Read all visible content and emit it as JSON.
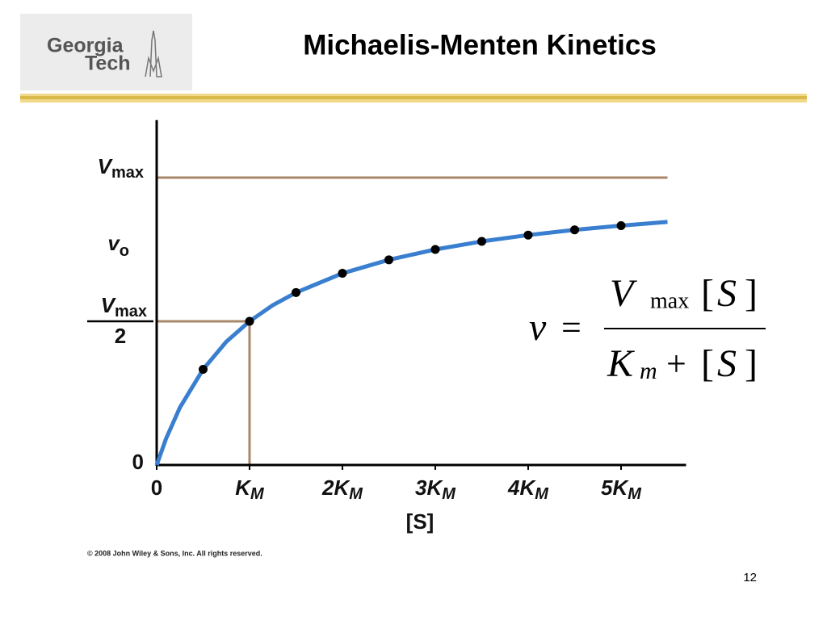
{
  "header": {
    "logo": [
      "Georgia",
      "Tech"
    ],
    "title": "Michaelis-Menten Kinetics"
  },
  "chart_data": {
    "type": "scatter",
    "xlim": [
      0,
      5.7
    ],
    "ylim": [
      0,
      1.2
    ],
    "xticks": [
      0,
      {
        "value": 1,
        "label": "K",
        "sub": "M"
      },
      {
        "value": 2,
        "label": "2K",
        "sub": "M"
      },
      {
        "value": 3,
        "label": "3K",
        "sub": "M"
      },
      {
        "value": 4,
        "label": "4K",
        "sub": "M"
      },
      {
        "value": 5,
        "label": "5K",
        "sub": "M"
      }
    ],
    "yticks": [
      0,
      {
        "value": 0.5,
        "label": "V",
        "sub": "max",
        "denominator": "2"
      },
      {
        "value": 1,
        "label": "V",
        "sub": "max"
      }
    ],
    "xlabel": "[S]",
    "ylabel": {
      "label": "v",
      "sub": "o"
    },
    "reference_color": "#a8876a",
    "series": [
      {
        "x": [
          0.5,
          1,
          1.5,
          2,
          2.5,
          3,
          3.5,
          4,
          4.5,
          5
        ],
        "values": [
          0.333,
          0.5,
          0.6,
          0.667,
          0.714,
          0.75,
          0.778,
          0.8,
          0.818,
          0.833
        ],
        "color": "#000000",
        "style": "points"
      },
      {
        "x": [
          0,
          0.1,
          0.25,
          0.5,
          0.75,
          1,
          1.25,
          1.5,
          2,
          2.5,
          3,
          3.5,
          4,
          4.5,
          5,
          5.5
        ],
        "values": [
          0,
          0.091,
          0.2,
          0.333,
          0.429,
          0.5,
          0.556,
          0.6,
          0.667,
          0.714,
          0.75,
          0.778,
          0.8,
          0.818,
          0.833,
          0.846
        ],
        "color": "#3a7fcf",
        "style": "line"
      }
    ]
  },
  "equation": {
    "lhs": "v",
    "eq": "=",
    "num": [
      "V",
      "max",
      "[",
      "S",
      "]"
    ],
    "den": [
      "K",
      "m",
      "+",
      "[",
      "S",
      "]"
    ]
  },
  "footer": {
    "copyright": "© 2008 John Wiley & Sons, Inc. All rights reserved.",
    "page": "12"
  }
}
